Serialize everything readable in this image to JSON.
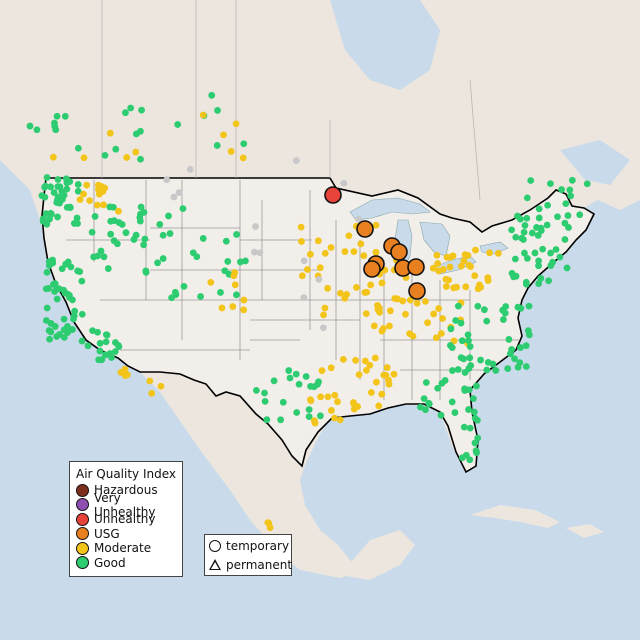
{
  "legend_aqi": {
    "title": "Air Quality Index",
    "items": [
      {
        "label": "Hazardous",
        "color": "#7e2f1e"
      },
      {
        "label": "Very Unhealthy",
        "color": "#8f4fb0"
      },
      {
        "label": "Unhealthy",
        "color": "#e8433a"
      },
      {
        "label": "USG",
        "color": "#e9801f"
      },
      {
        "label": "Moderate",
        "color": "#f3c41a"
      },
      {
        "label": "Good",
        "color": "#2ecc71"
      }
    ]
  },
  "legend_shape": {
    "items": [
      {
        "label": "temporary",
        "symbol": "circle"
      },
      {
        "label": "permanent",
        "symbol": "triangle"
      }
    ]
  },
  "colors": {
    "water": "#c9daea",
    "land_us": "#f2eeea",
    "land_other": "#ece6df",
    "state_lines": "#999999",
    "border": "#000000",
    "no_data": "#c8c8c8"
  }
}
